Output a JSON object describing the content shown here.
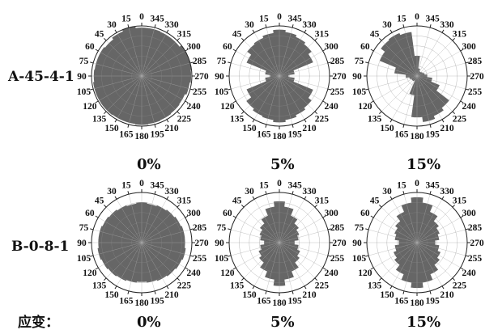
{
  "figure": {
    "rows": [
      {
        "label": "A-45-4-1"
      },
      {
        "label": "B-0-8-1"
      }
    ],
    "strain_prefix": "应变：",
    "strain_labels": [
      "0%",
      "5%",
      "15%"
    ]
  },
  "colors": {
    "fill": "#666666",
    "ring": "#888888",
    "spoke": "#aaaaaa"
  },
  "chart_data": [
    {
      "type": "rose",
      "row": "A-45-4-1",
      "strain": "0%",
      "angles": [
        0,
        15,
        30,
        45,
        60,
        75,
        90,
        105,
        120,
        135,
        150,
        165,
        180,
        195,
        210,
        225,
        240,
        255,
        270,
        285,
        300,
        315,
        330,
        345
      ],
      "values": [
        0.96,
        0.99,
        0.96,
        0.92,
        0.94,
        0.94,
        0.95,
        0.97,
        0.97,
        0.97,
        0.96,
        0.96,
        0.97,
        0.96,
        0.95,
        0.94,
        0.93,
        0.96,
        0.98,
        0.99,
        0.99,
        0.95,
        0.95,
        0.96
      ],
      "r_max": 1.0
    },
    {
      "type": "rose",
      "row": "A-45-4-1",
      "strain": "5%",
      "angles": [
        0,
        15,
        30,
        45,
        60,
        75,
        90,
        105,
        120,
        135,
        150,
        165,
        180,
        195,
        210,
        225,
        240,
        255,
        270,
        285,
        300,
        315,
        330,
        345
      ],
      "values": [
        0.92,
        0.86,
        0.82,
        0.8,
        0.7,
        0.28,
        0.18,
        0.28,
        0.7,
        0.82,
        0.86,
        0.88,
        0.92,
        0.88,
        0.84,
        0.8,
        0.72,
        0.3,
        0.18,
        0.3,
        0.72,
        0.8,
        0.84,
        0.88
      ],
      "r_max": 1.0
    },
    {
      "type": "rose",
      "row": "A-45-4-1",
      "strain": "15%",
      "angles": [
        0,
        15,
        30,
        45,
        60,
        75,
        90,
        105,
        120,
        135,
        150,
        165,
        180,
        195,
        210,
        225,
        240,
        255,
        270,
        285,
        300,
        315,
        330,
        345
      ],
      "values": [
        0.4,
        0.88,
        0.92,
        0.9,
        0.8,
        0.45,
        0.22,
        0.15,
        0.12,
        0.12,
        0.1,
        0.38,
        0.82,
        0.92,
        0.86,
        0.8,
        0.48,
        0.3,
        0.2,
        0.15,
        0.12,
        0.1,
        0.1,
        0.15
      ],
      "r_max": 1.0
    },
    {
      "type": "rose",
      "row": "B-0-8-1",
      "strain": "0%",
      "angles": [
        0,
        15,
        30,
        45,
        60,
        75,
        90,
        105,
        120,
        135,
        150,
        165,
        180,
        195,
        210,
        225,
        240,
        255,
        270,
        285,
        300,
        315,
        330,
        345
      ],
      "values": [
        0.8,
        0.78,
        0.8,
        0.82,
        0.84,
        0.86,
        0.86,
        0.88,
        0.86,
        0.84,
        0.82,
        0.8,
        0.78,
        0.8,
        0.82,
        0.84,
        0.86,
        0.88,
        0.86,
        0.86,
        0.84,
        0.82,
        0.8,
        0.78
      ],
      "r_max": 1.0
    },
    {
      "type": "rose",
      "row": "B-0-8-1",
      "strain": "5%",
      "angles": [
        0,
        15,
        30,
        45,
        60,
        75,
        90,
        105,
        120,
        135,
        150,
        165,
        180,
        195,
        210,
        225,
        240,
        255,
        270,
        285,
        300,
        315,
        330,
        345
      ],
      "values": [
        0.82,
        0.72,
        0.58,
        0.48,
        0.42,
        0.38,
        0.3,
        0.38,
        0.44,
        0.5,
        0.62,
        0.74,
        0.86,
        0.74,
        0.62,
        0.5,
        0.44,
        0.38,
        0.3,
        0.38,
        0.42,
        0.48,
        0.58,
        0.72
      ],
      "r_max": 1.0
    },
    {
      "type": "rose",
      "row": "B-0-8-1",
      "strain": "15%",
      "angles": [
        0,
        15,
        30,
        45,
        60,
        75,
        90,
        105,
        120,
        135,
        150,
        165,
        180,
        195,
        210,
        225,
        240,
        255,
        270,
        285,
        300,
        315,
        330,
        345
      ],
      "values": [
        0.9,
        0.8,
        0.66,
        0.54,
        0.48,
        0.44,
        0.36,
        0.44,
        0.5,
        0.56,
        0.68,
        0.8,
        0.9,
        0.8,
        0.68,
        0.56,
        0.5,
        0.44,
        0.36,
        0.44,
        0.48,
        0.54,
        0.66,
        0.8
      ],
      "r_max": 1.0
    }
  ]
}
